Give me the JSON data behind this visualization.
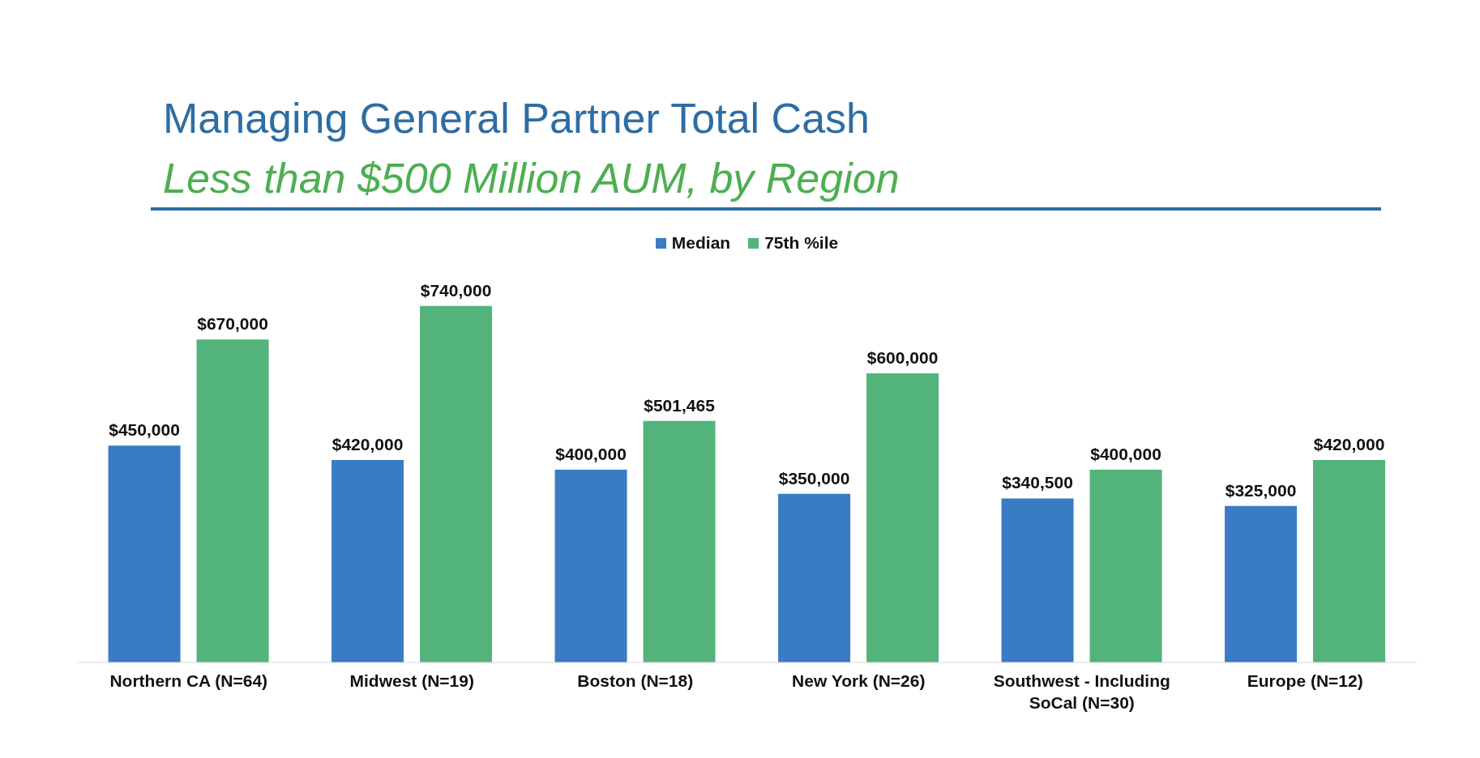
{
  "chart_data": {
    "type": "bar",
    "title": "Managing General Partner Total Cash",
    "subtitle": "Less than $500 Million AUM, by Region",
    "categories": [
      "Northern CA (N=64)",
      "Midwest (N=19)",
      "Boston (N=18)",
      "New York (N=26)",
      "Southwest - Including SoCal (N=30)",
      "Europe (N=12)"
    ],
    "series": [
      {
        "name": "Median",
        "color": "#3a7cc4",
        "values": [
          450000,
          420000,
          400000,
          350000,
          340500,
          325000
        ],
        "value_labels": [
          "$450,000",
          "$420,000",
          "$400,000",
          "$350,000",
          "$340,500",
          "$325,000"
        ]
      },
      {
        "name": "75th %ile",
        "color": "#52b47a",
        "values": [
          670000,
          740000,
          501465,
          600000,
          400000,
          420000
        ],
        "value_labels": [
          "$670,000",
          "$740,000",
          "$501,465",
          "$600,000",
          "$400,000",
          "$420,000"
        ]
      }
    ],
    "legend": "top",
    "grid": false
  }
}
